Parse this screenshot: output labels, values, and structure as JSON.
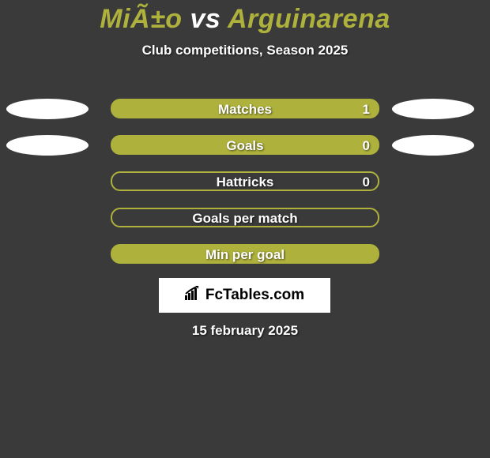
{
  "title": {
    "player1": "MiÃ±o",
    "vs": "vs",
    "player2": "Arguinarena",
    "color_player": "#aeb13c",
    "color_vs": "#ffffff",
    "fontsize": 34
  },
  "subtitle": "Club competitions, Season 2025",
  "brand": "FcTables.com",
  "date": "15 february 2025",
  "style": {
    "background": "#3a3a3a",
    "ellipse_color": "#ffffff",
    "text_color": "#ffffff",
    "shadow_color": "rgba(0,0,0,0.6)",
    "label_fontsize": 17
  },
  "rows": [
    {
      "label": "Matches",
      "value": "1",
      "outline": false,
      "fill": "#aeb13c",
      "border": "#aeb13c",
      "left_ellipse": true,
      "right_ellipse": true
    },
    {
      "label": "Goals",
      "value": "0",
      "outline": false,
      "fill": "#aeb13c",
      "border": "#aeb13c",
      "left_ellipse": true,
      "right_ellipse": true
    },
    {
      "label": "Hattricks",
      "value": "0",
      "outline": true,
      "fill": "transparent",
      "border": "#aeb13c",
      "left_ellipse": false,
      "right_ellipse": false
    },
    {
      "label": "Goals per match",
      "value": "",
      "outline": true,
      "fill": "transparent",
      "border": "#aeb13c",
      "left_ellipse": false,
      "right_ellipse": false
    },
    {
      "label": "Min per goal",
      "value": "",
      "outline": false,
      "fill": "#aeb13c",
      "border": "#aeb13c",
      "left_ellipse": false,
      "right_ellipse": false
    }
  ]
}
